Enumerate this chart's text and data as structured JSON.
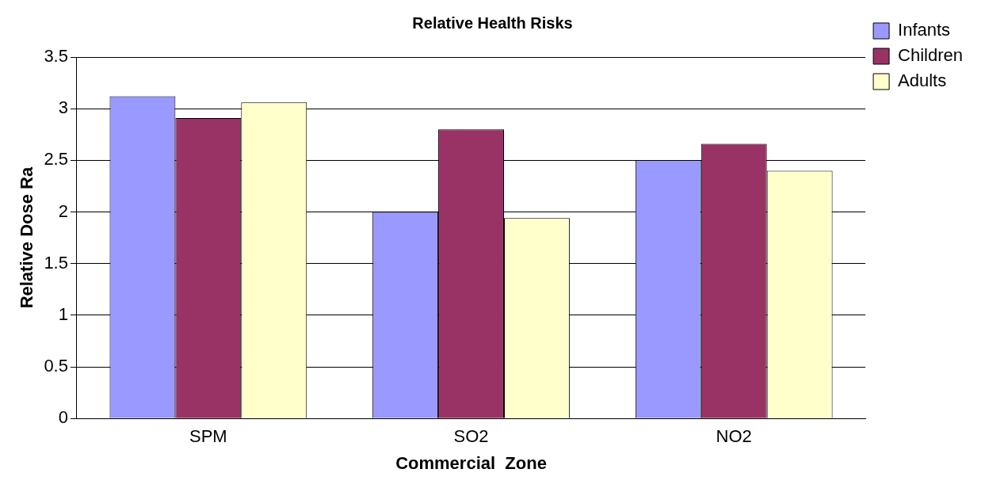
{
  "chart_data": {
    "type": "bar",
    "title": "Relative Health Risks",
    "xlabel": "Commercial  Zone",
    "ylabel": "Relative Dose Ra",
    "categories": [
      "SPM",
      "SO2",
      "NO2"
    ],
    "series": [
      {
        "name": "Infants",
        "color": "#9999ff",
        "values": [
          3.12,
          2.0,
          2.5
        ]
      },
      {
        "name": "Children",
        "color": "#993366",
        "values": [
          2.91,
          2.8,
          2.66
        ]
      },
      {
        "name": "Adults",
        "color": "#ffffcc",
        "values": [
          3.06,
          1.94,
          2.4
        ]
      }
    ],
    "ylim": [
      0,
      3.5
    ],
    "yticks": [
      0,
      0.5,
      1,
      1.5,
      2,
      2.5,
      3,
      3.5
    ],
    "grid": "y",
    "legend": "top right"
  }
}
